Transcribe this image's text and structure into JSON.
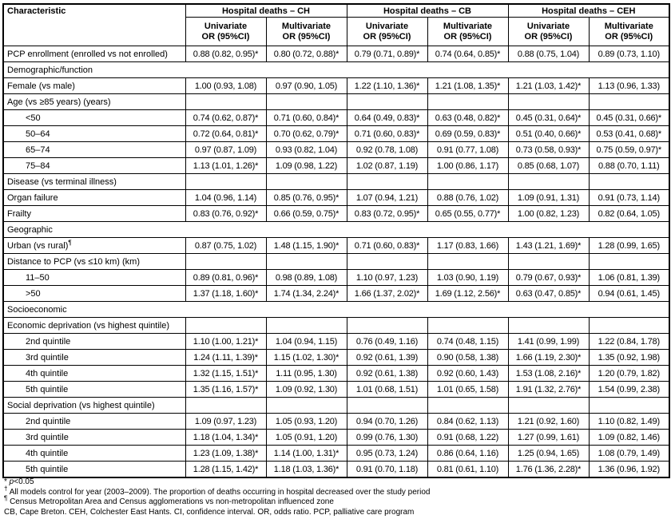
{
  "table": {
    "characteristic_header": "Characteristic",
    "groups": [
      "Hospital deaths – CH",
      "Hospital deaths – CB",
      "Hospital deaths – CEH"
    ],
    "sub_headers": [
      {
        "line1": "Univariate",
        "line2": "OR (95%CI)"
      },
      {
        "line1": "Multivariate",
        "line2": "OR (95%CI)"
      },
      {
        "line1": "Univariate",
        "line2": "OR (95%CI)"
      },
      {
        "line1": "Multivariate",
        "line2": "OR (95%CI)"
      },
      {
        "line1": "Univariate",
        "line2": "OR (95%CI)"
      },
      {
        "line1": "Multivariate",
        "line2": "OR (95%CI)"
      }
    ],
    "rows": [
      {
        "type": "data",
        "label": "PCP enrollment (enrolled vs not enrolled)",
        "indent": false,
        "values": [
          "0.88 (0.82, 0.95)*",
          "0.80 (0.72, 0.88)*",
          "0.79 (0.71, 0.89)*",
          "0.74 (0.64, 0.85)*",
          "0.88 (0.75, 1.04)",
          "0.89 (0.73, 1.10)"
        ]
      },
      {
        "type": "section",
        "label": "Demographic/function"
      },
      {
        "type": "data",
        "label": "Female (vs male)",
        "indent": false,
        "values": [
          "1.00 (0.93, 1.08)",
          "0.97 (0.90, 1.05)",
          "1.22 (1.10, 1.36)*",
          "1.21 (1.08, 1.35)*",
          "1.21 (1.03, 1.42)*",
          "1.13 (0.96, 1.33)"
        ]
      },
      {
        "type": "data",
        "label": "Age (vs ≥85 years) (years)",
        "indent": false,
        "values": [
          "",
          "",
          "",
          "",
          "",
          ""
        ]
      },
      {
        "type": "data",
        "label": "<50",
        "indent": true,
        "values": [
          "0.74 (0.62, 0.87)*",
          "0.71 (0.60, 0.84)*",
          "0.64 (0.49, 0.83)*",
          "0.63 (0.48, 0.82)*",
          "0.45 (0.31, 0.64)*",
          "0.45 (0.31, 0.66)*"
        ]
      },
      {
        "type": "data",
        "label": "50–64",
        "indent": true,
        "values": [
          "0.72 (0.64, 0.81)*",
          "0.70 (0.62, 0.79)*",
          "0.71 (0.60, 0.83)*",
          "0.69 (0.59, 0.83)*",
          "0.51 (0.40, 0.66)*",
          "0.53 (0.41, 0.68)*"
        ]
      },
      {
        "type": "data",
        "label": "65–74",
        "indent": true,
        "values": [
          "0.97 (0.87, 1.09)",
          "0.93 (0.82, 1.04)",
          "0.92 (0.78, 1.08)",
          "0.91 (0.77, 1.08)",
          "0.73 (0.58, 0.93)*",
          "0.75 (0.59, 0.97)*"
        ]
      },
      {
        "type": "data",
        "label": "75–84",
        "indent": true,
        "values": [
          "1.13 (1.01, 1.26)*",
          "1.09 (0.98, 1.22)",
          "1.02 (0.87, 1.19)",
          "1.00 (0.86, 1.17)",
          "0.85 (0.68, 1.07)",
          "0.88 (0.70, 1.11)"
        ]
      },
      {
        "type": "data",
        "label": "Disease (vs terminal illness)",
        "indent": false,
        "values": [
          "",
          "",
          "",
          "",
          "",
          ""
        ]
      },
      {
        "type": "data",
        "label": "Organ failure",
        "indent": false,
        "values": [
          "1.04 (0.96, 1.14)",
          "0.85 (0.76, 0.95)*",
          "1.07 (0.94, 1.21)",
          "0.88 (0.76, 1.02)",
          "1.09 (0.91, 1.31)",
          "0.91 (0.73, 1.14)"
        ]
      },
      {
        "type": "data",
        "label": "Frailty",
        "indent": false,
        "values": [
          "0.83 (0.76, 0.92)*",
          "0.66 (0.59, 0.75)*",
          "0.83 (0.72, 0.95)*",
          "0.65 (0.55, 0.77)*",
          "1.00 (0.82, 1.23)",
          "0.82 (0.64, 1.05)"
        ]
      },
      {
        "type": "section",
        "label": "Geographic"
      },
      {
        "type": "data",
        "label": "Urban (vs rural)",
        "sup": "¶",
        "indent": false,
        "values": [
          "0.87 (0.75, 1.02)",
          "1.48 (1.15, 1.90)*",
          "0.71 (0.60, 0.83)*",
          "1.17 (0.83, 1.66)",
          "1.43 (1.21, 1.69)*",
          "1.28 (0.99, 1.65)"
        ]
      },
      {
        "type": "data",
        "label": "Distance to PCP (vs ≤10 km) (km)",
        "indent": false,
        "values": [
          "",
          "",
          "",
          "",
          "",
          ""
        ]
      },
      {
        "type": "data",
        "label": "11–50",
        "indent": true,
        "values": [
          "0.89 (0.81, 0.96)*",
          "0.98 (0.89, 1.08)",
          "1.10 (0.97, 1.23)",
          "1.03 (0.90, 1.19)",
          "0.79 (0.67, 0.93)*",
          "1.06 (0.81, 1.39)"
        ]
      },
      {
        "type": "data",
        "label": ">50",
        "indent": true,
        "values": [
          "1.37 (1.18, 1.60)*",
          "1.74 (1.34, 2.24)*",
          "1.66 (1.37, 2.02)*",
          "1.69 (1.12, 2.56)*",
          "0.63 (0.47, 0.85)*",
          "0.94 (0.61, 1.45)"
        ]
      },
      {
        "type": "section",
        "label": "Socioeconomic"
      },
      {
        "type": "data",
        "label": "Economic deprivation (vs highest quintile)",
        "indent": false,
        "values": [
          "",
          "",
          "",
          "",
          "",
          ""
        ]
      },
      {
        "type": "data",
        "label": "2nd quintile",
        "indent": true,
        "values": [
          "1.10 (1.00, 1.21)*",
          "1.04 (0.94, 1.15)",
          "0.76 (0.49, 1.16)",
          "0.74 (0.48, 1.15)",
          "1.41 (0.99, 1.99)",
          "1.22 (0.84, 1.78)"
        ]
      },
      {
        "type": "data",
        "label": "3rd quintile",
        "indent": true,
        "values": [
          "1.24 (1.11, 1.39)*",
          "1.15 (1.02, 1.30)*",
          "0.92 (0.61, 1.39)",
          "0.90 (0.58, 1.38)",
          "1.66 (1.19, 2.30)*",
          "1.35 (0.92, 1.98)"
        ]
      },
      {
        "type": "data",
        "label": "4th quintile",
        "indent": true,
        "values": [
          "1.32 (1.15, 1.51)*",
          "1.11 (0.95, 1.30)",
          "0.92 (0.61, 1.38)",
          "0.92 (0.60, 1.43)",
          "1.53 (1.08, 2.16)*",
          "1.20 (0.79, 1.82)"
        ]
      },
      {
        "type": "data",
        "label": "5th quintile",
        "indent": true,
        "values": [
          "1.35 (1.16, 1.57)*",
          "1.09 (0.92, 1.30)",
          "1.01 (0.68, 1.51)",
          "1.01 (0.65, 1.58)",
          "1.91 (1.32, 2.76)*",
          "1.54 (0.99, 2.38)"
        ]
      },
      {
        "type": "data",
        "label": "Social deprivation (vs highest quintile)",
        "indent": false,
        "values": [
          "",
          "",
          "",
          "",
          "",
          ""
        ]
      },
      {
        "type": "data",
        "label": "2nd quintile",
        "indent": true,
        "values": [
          "1.09 (0.97, 1.23)",
          "1.05 (0.93, 1.20)",
          "0.94 (0.70, 1.26)",
          "0.84 (0.62, 1.13)",
          "1.21 (0.92, 1.60)",
          "1.10 (0.82, 1.49)"
        ]
      },
      {
        "type": "data",
        "label": "3rd quintile",
        "indent": true,
        "values": [
          "1.18 (1.04, 1.34)*",
          "1.05 (0.91, 1.20)",
          "0.99 (0.76, 1.30)",
          "0.91 (0.68, 1.22)",
          "1.27 (0.99, 1.61)",
          "1.09 (0.82, 1.46)"
        ]
      },
      {
        "type": "data",
        "label": "4th quintile",
        "indent": true,
        "values": [
          "1.23 (1.09, 1.38)*",
          "1.14 (1.00, 1.31)*",
          "0.95 (0.73, 1.24)",
          "0.86 (0.64, 1.16)",
          "1.25 (0.94, 1.65)",
          "1.08 (0.79, 1.49)"
        ]
      },
      {
        "type": "data",
        "label": "5th quintile",
        "indent": true,
        "values": [
          "1.28 (1.15, 1.42)*",
          "1.18 (1.03, 1.36)*",
          "0.91 (0.70, 1.18)",
          "0.81 (0.61, 1.10)",
          "1.76 (1.36, 2.28)*",
          "1.36 (0.96, 1.92)"
        ]
      }
    ]
  },
  "footnotes": [
    {
      "marker": "*",
      "italic": "p",
      "text": "<0.05"
    },
    {
      "marker": "†",
      "italic": "",
      "text": "All models control for year (2003–2009). The proportion of deaths occurring in hospital decreased over the study period"
    },
    {
      "marker": "¶",
      "italic": "",
      "text": "Census Metropolitan Area and Census agglomerations vs non-metropolitan influenced zone"
    },
    {
      "marker": "",
      "italic": "",
      "text": "CB, Cape Breton. CEH, Colchester East Hants. CI, confidence interval. OR, odds ratio. PCP, palliative care program"
    }
  ]
}
